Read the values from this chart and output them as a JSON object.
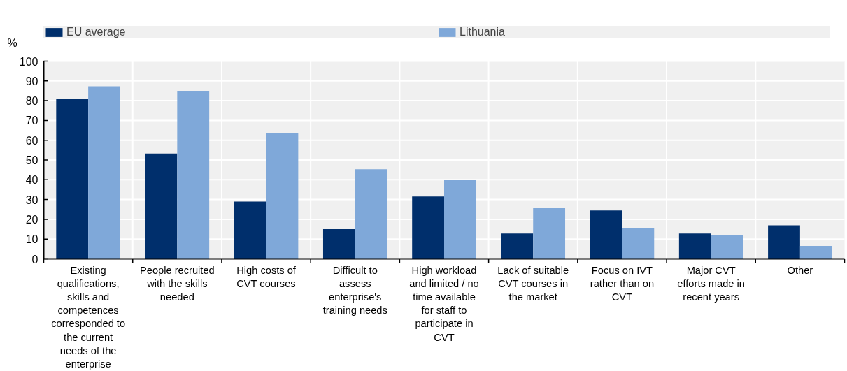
{
  "chart_data": {
    "type": "bar",
    "ylabel": "%",
    "categories": [
      "Existing qualifications, skills and competences corresponded to the current needs of the enterprise",
      "People recruited with the skills needed",
      "High costs of CVT courses",
      "Difficult to assess enterprise's training needs",
      "High workload and limited / no time available for staff to participate in CVT",
      "Lack of suitable CVT courses in the market",
      "Focus on IVT rather than on CVT",
      "Major CVT efforts made in recent years",
      "Other"
    ],
    "series": [
      {
        "name": "EU average",
        "color": "#002f6c",
        "values": [
          81,
          53.3,
          29,
          15,
          31.5,
          12.8,
          24.5,
          12.8,
          17
        ]
      },
      {
        "name": "Lithuania",
        "color": "#7fa8d9",
        "values": [
          87.3,
          85,
          63.6,
          45.3,
          40,
          26,
          15.7,
          12,
          6.5
        ]
      }
    ],
    "ylim": [
      0,
      100
    ],
    "yticks": [
      0,
      10,
      20,
      30,
      40,
      50,
      60,
      70,
      80,
      90,
      100
    ],
    "grid": true,
    "legend": "top"
  }
}
